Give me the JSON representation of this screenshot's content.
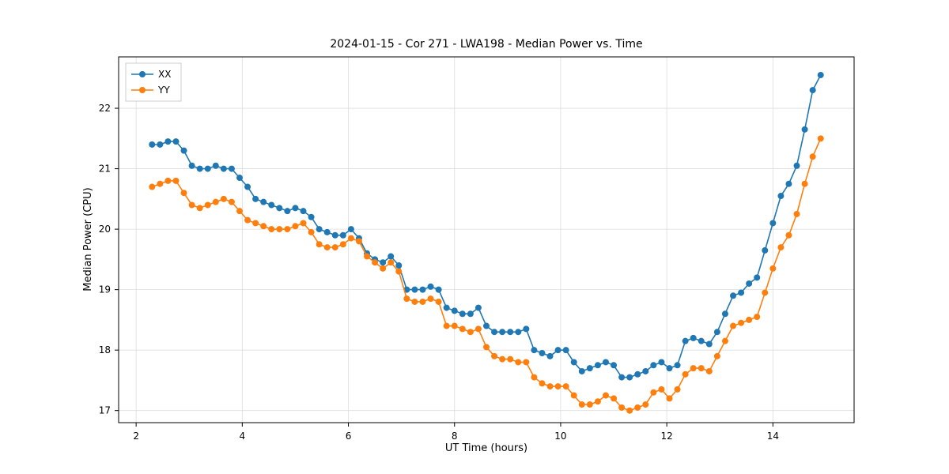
{
  "figure": {
    "title": "2024-01-15 - Cor 271 - LWA198 - Median Power vs. Time",
    "xlabel": "UT Time (hours)",
    "ylabel": "Median Power (CPU)"
  },
  "chart_data": {
    "type": "line",
    "title": "2024-01-15 - Cor 271 - LWA198 - Median Power vs. Time",
    "xlabel": "UT Time (hours)",
    "ylabel": "Median Power (CPU)",
    "xlim": [
      1.67,
      15.53
    ],
    "ylim": [
      16.8,
      22.85
    ],
    "xticks": [
      2,
      4,
      6,
      8,
      10,
      12,
      14
    ],
    "yticks": [
      17,
      18,
      19,
      20,
      21,
      22
    ],
    "grid": true,
    "legend_position": "upper left",
    "marker": "o",
    "x": [
      2.3,
      2.45,
      2.6,
      2.75,
      2.9,
      3.05,
      3.2,
      3.35,
      3.5,
      3.65,
      3.8,
      3.95,
      4.1,
      4.25,
      4.4,
      4.55,
      4.7,
      4.85,
      5.0,
      5.15,
      5.3,
      5.45,
      5.6,
      5.75,
      5.9,
      6.05,
      6.2,
      6.35,
      6.5,
      6.65,
      6.8,
      6.95,
      7.1,
      7.25,
      7.4,
      7.55,
      7.7,
      7.85,
      8.0,
      8.15,
      8.3,
      8.45,
      8.6,
      8.75,
      8.9,
      9.05,
      9.2,
      9.35,
      9.5,
      9.65,
      9.8,
      9.95,
      10.1,
      10.25,
      10.4,
      10.55,
      10.7,
      10.85,
      11.0,
      11.15,
      11.3,
      11.45,
      11.6,
      11.75,
      11.9,
      12.05,
      12.2,
      12.35,
      12.5,
      12.65,
      12.8,
      12.95,
      13.1,
      13.25,
      13.4,
      13.55,
      13.7,
      13.85,
      14.0,
      14.15,
      14.3,
      14.45,
      14.6,
      14.75,
      14.9
    ],
    "series": [
      {
        "name": "XX",
        "color": "#1f77b4",
        "values": [
          21.4,
          21.4,
          21.45,
          21.45,
          21.3,
          21.05,
          21.0,
          21.0,
          21.05,
          21.0,
          21.0,
          20.85,
          20.7,
          20.5,
          20.45,
          20.4,
          20.35,
          20.3,
          20.35,
          20.3,
          20.2,
          20.0,
          19.95,
          19.9,
          19.9,
          20.0,
          19.85,
          19.6,
          19.5,
          19.45,
          19.55,
          19.4,
          19.0,
          19.0,
          19.0,
          19.05,
          19.0,
          18.7,
          18.65,
          18.6,
          18.6,
          18.7,
          18.4,
          18.3,
          18.3,
          18.3,
          18.3,
          18.35,
          18.0,
          17.95,
          17.9,
          18.0,
          18.0,
          17.8,
          17.65,
          17.7,
          17.75,
          17.8,
          17.75,
          17.55,
          17.55,
          17.6,
          17.65,
          17.75,
          17.8,
          17.7,
          17.75,
          18.15,
          18.2,
          18.15,
          18.1,
          18.3,
          18.6,
          18.9,
          18.95,
          19.1,
          19.2,
          19.65,
          20.1,
          20.55,
          20.75,
          21.05,
          21.65,
          22.3,
          22.55
        ]
      },
      {
        "name": "YY",
        "color": "#ff7f0e",
        "values": [
          20.7,
          20.75,
          20.8,
          20.8,
          20.6,
          20.4,
          20.35,
          20.4,
          20.45,
          20.5,
          20.45,
          20.3,
          20.15,
          20.1,
          20.05,
          20.0,
          20.0,
          20.0,
          20.05,
          20.1,
          19.95,
          19.75,
          19.7,
          19.7,
          19.75,
          19.85,
          19.8,
          19.55,
          19.45,
          19.35,
          19.45,
          19.3,
          18.85,
          18.8,
          18.8,
          18.85,
          18.8,
          18.4,
          18.4,
          18.35,
          18.3,
          18.35,
          18.05,
          17.9,
          17.85,
          17.85,
          17.8,
          17.8,
          17.55,
          17.45,
          17.4,
          17.4,
          17.4,
          17.25,
          17.1,
          17.1,
          17.15,
          17.25,
          17.2,
          17.05,
          17.0,
          17.05,
          17.1,
          17.3,
          17.35,
          17.2,
          17.35,
          17.6,
          17.7,
          17.7,
          17.65,
          17.9,
          18.15,
          18.4,
          18.45,
          18.5,
          18.55,
          18.95,
          19.35,
          19.7,
          19.9,
          20.25,
          20.75,
          21.2,
          21.5
        ]
      }
    ],
    "style": {
      "grid_color": "#dddddd",
      "spine_color": "#000000",
      "tick_font_size": 12,
      "marker_radius": 4,
      "line_width": 1.6
    }
  }
}
